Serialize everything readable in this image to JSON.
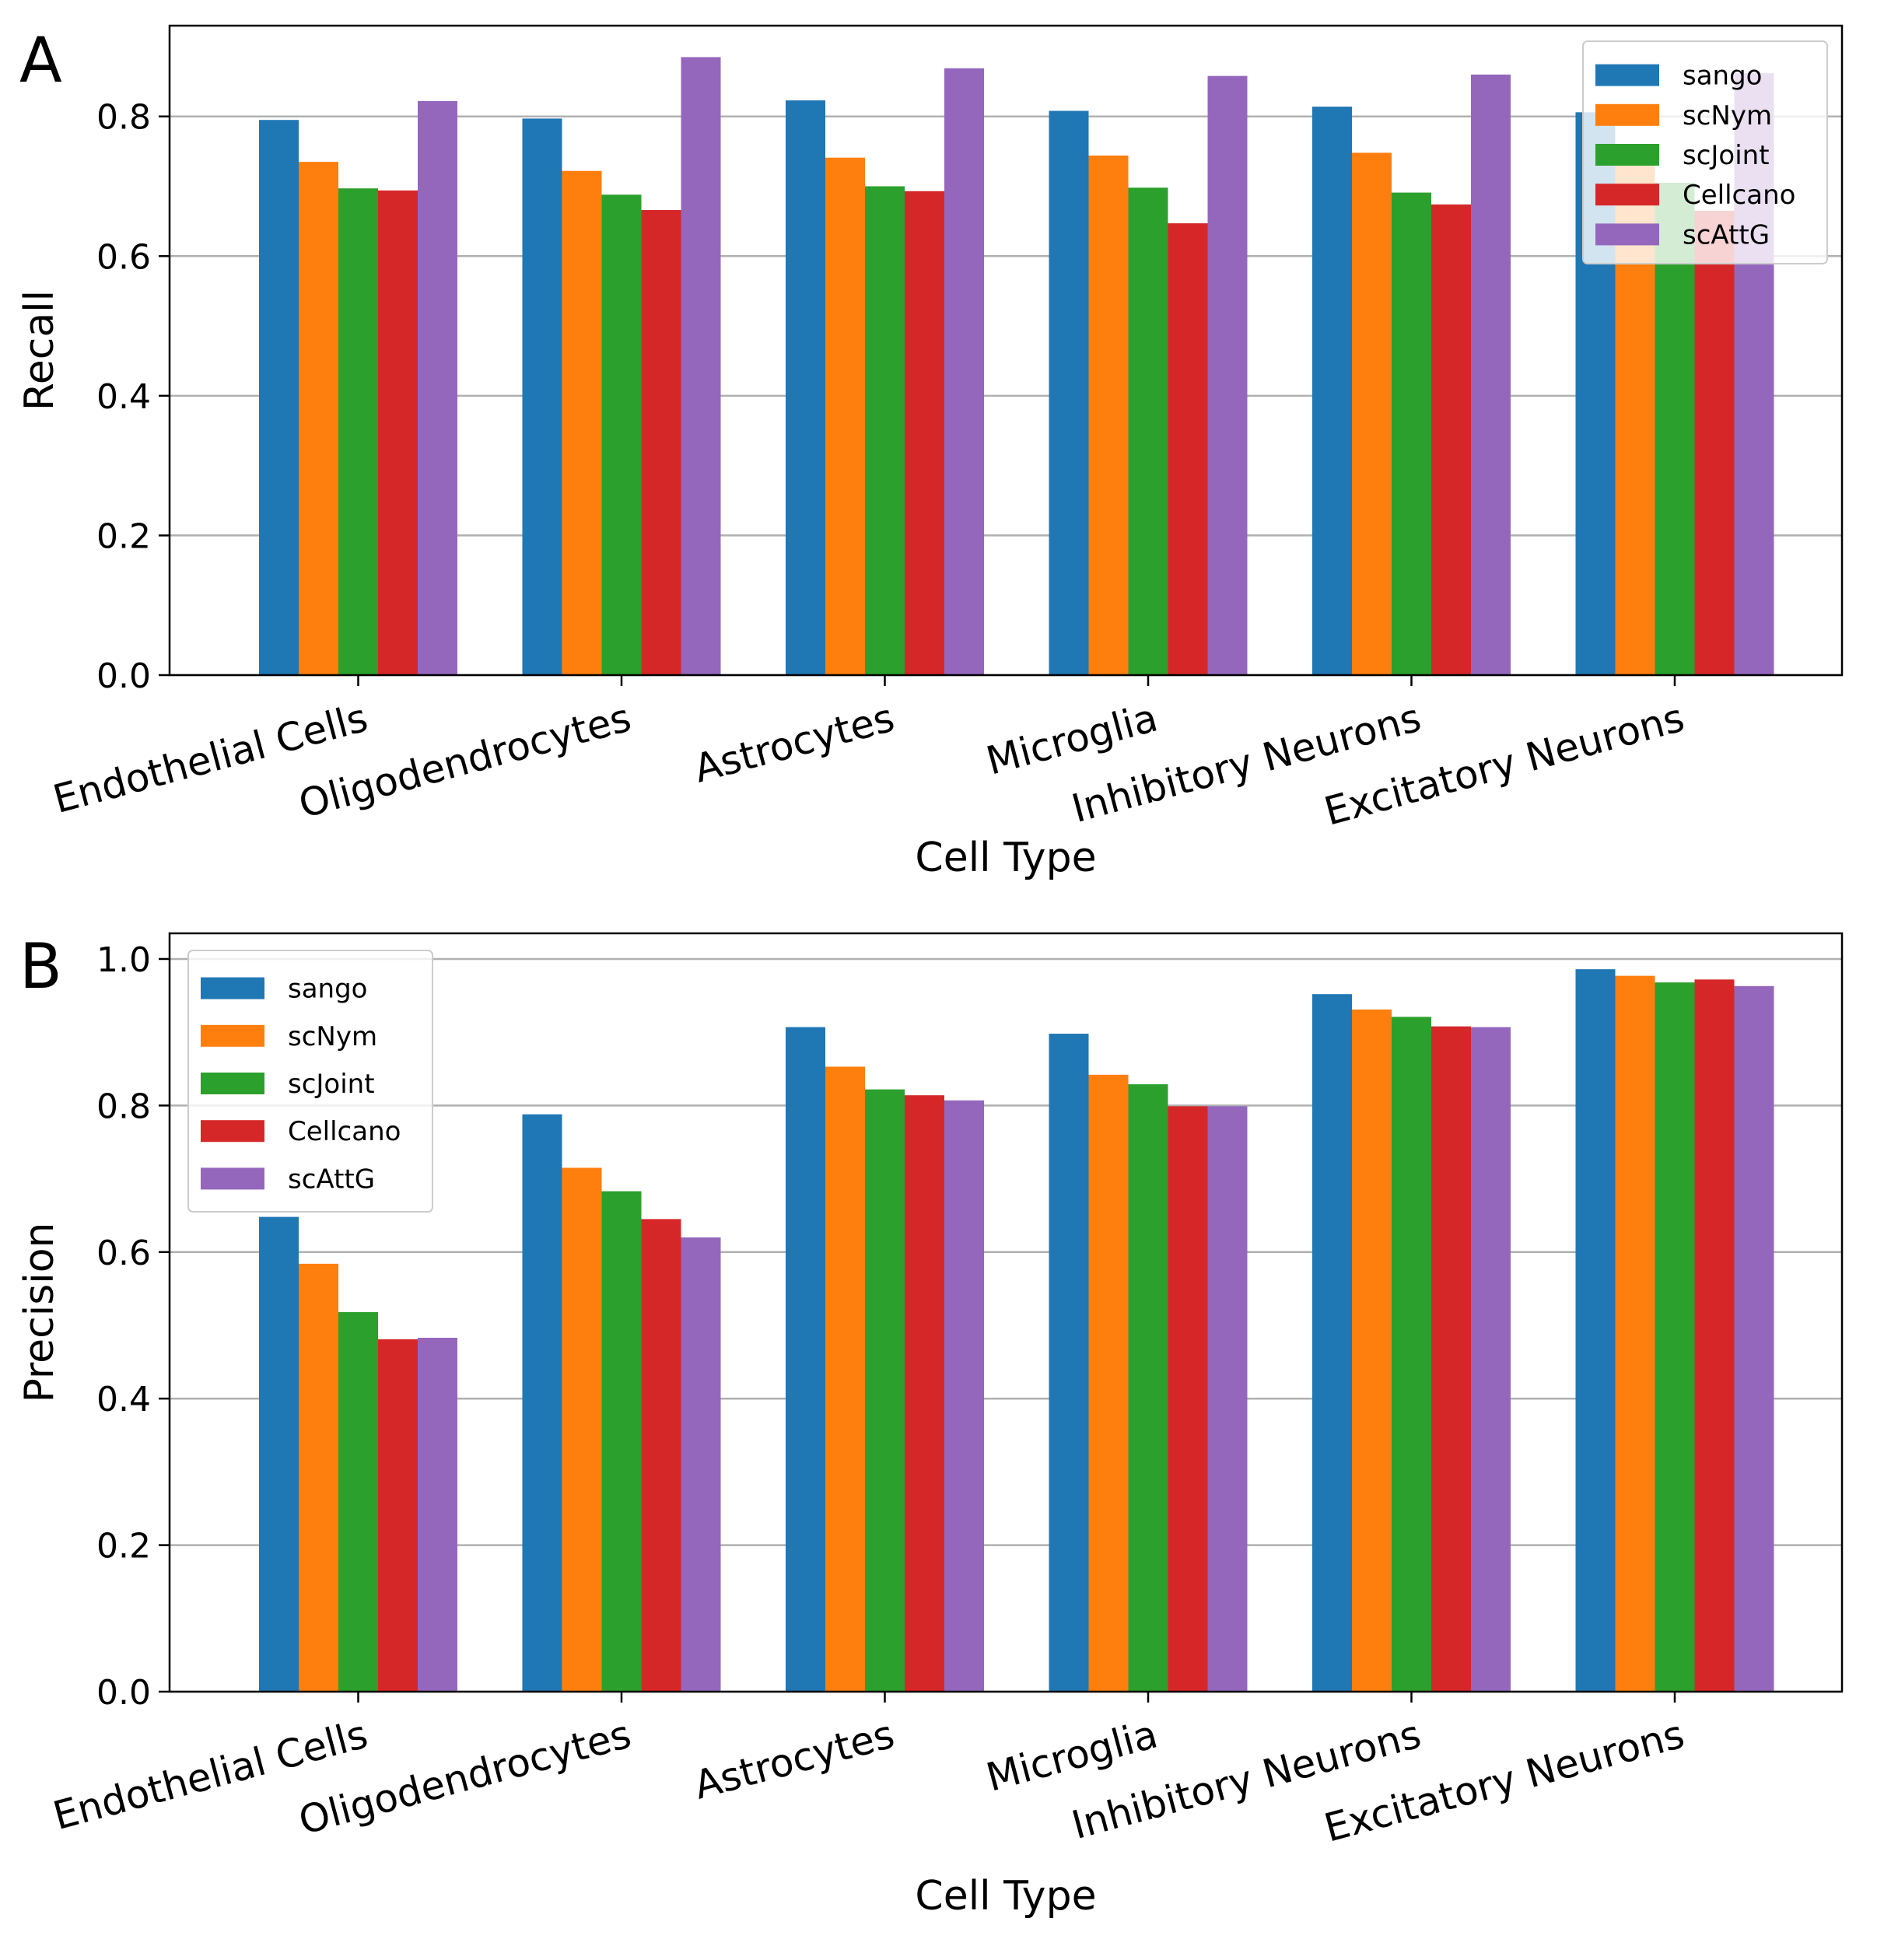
{
  "chart_data": [
    {
      "type": "bar",
      "panel_label": "A",
      "categories": [
        "Endothelial Cells",
        "Oligodendrocytes",
        "Astrocytes",
        "Microglia",
        "Inhibitory Neurons",
        "Excitatory Neurons"
      ],
      "series": [
        {
          "name": "sango",
          "color": "#1f77b4",
          "values": [
            0.795,
            0.797,
            0.823,
            0.808,
            0.814,
            0.806
          ]
        },
        {
          "name": "scNym",
          "color": "#ff7f0e",
          "values": [
            0.735,
            0.722,
            0.741,
            0.744,
            0.748,
            0.74
          ]
        },
        {
          "name": "scJoint",
          "color": "#2ca02c",
          "values": [
            0.697,
            0.688,
            0.7,
            0.698,
            0.691,
            0.705
          ]
        },
        {
          "name": "Cellcano",
          "color": "#d62728",
          "values": [
            0.694,
            0.666,
            0.693,
            0.647,
            0.674,
            0.665
          ]
        },
        {
          "name": "scAttG",
          "color": "#9467bd",
          "values": [
            0.822,
            0.885,
            0.869,
            0.858,
            0.86,
            0.862
          ]
        }
      ],
      "xlabel": "Cell Type",
      "ylabel": "Recall",
      "ylim": [
        0,
        0.93
      ],
      "yticks": [
        "0.0",
        "0.2",
        "0.4",
        "0.6",
        "0.8"
      ],
      "grid": "horizontal",
      "legend_position": "upper right"
    },
    {
      "type": "bar",
      "panel_label": "B",
      "categories": [
        "Endothelial Cells",
        "Oligodendrocytes",
        "Astrocytes",
        "Microglia",
        "Inhibitory Neurons",
        "Excitatory Neurons"
      ],
      "series": [
        {
          "name": "sango",
          "color": "#1f77b4",
          "values": [
            0.648,
            0.788,
            0.907,
            0.898,
            0.952,
            0.986
          ]
        },
        {
          "name": "scNym",
          "color": "#ff7f0e",
          "values": [
            0.584,
            0.715,
            0.853,
            0.842,
            0.931,
            0.977
          ]
        },
        {
          "name": "scJoint",
          "color": "#2ca02c",
          "values": [
            0.518,
            0.683,
            0.822,
            0.829,
            0.921,
            0.968
          ]
        },
        {
          "name": "Cellcano",
          "color": "#d62728",
          "values": [
            0.481,
            0.645,
            0.814,
            0.799,
            0.908,
            0.972
          ]
        },
        {
          "name": "scAttG",
          "color": "#9467bd",
          "values": [
            0.483,
            0.62,
            0.807,
            0.799,
            0.907,
            0.963
          ]
        }
      ],
      "xlabel": "Cell Type",
      "ylabel": "Precision",
      "ylim": [
        0,
        1.035
      ],
      "yticks": [
        "0.0",
        "0.2",
        "0.4",
        "0.6",
        "0.8",
        "1.0"
      ],
      "grid": "horizontal",
      "legend_position": "upper left"
    }
  ]
}
